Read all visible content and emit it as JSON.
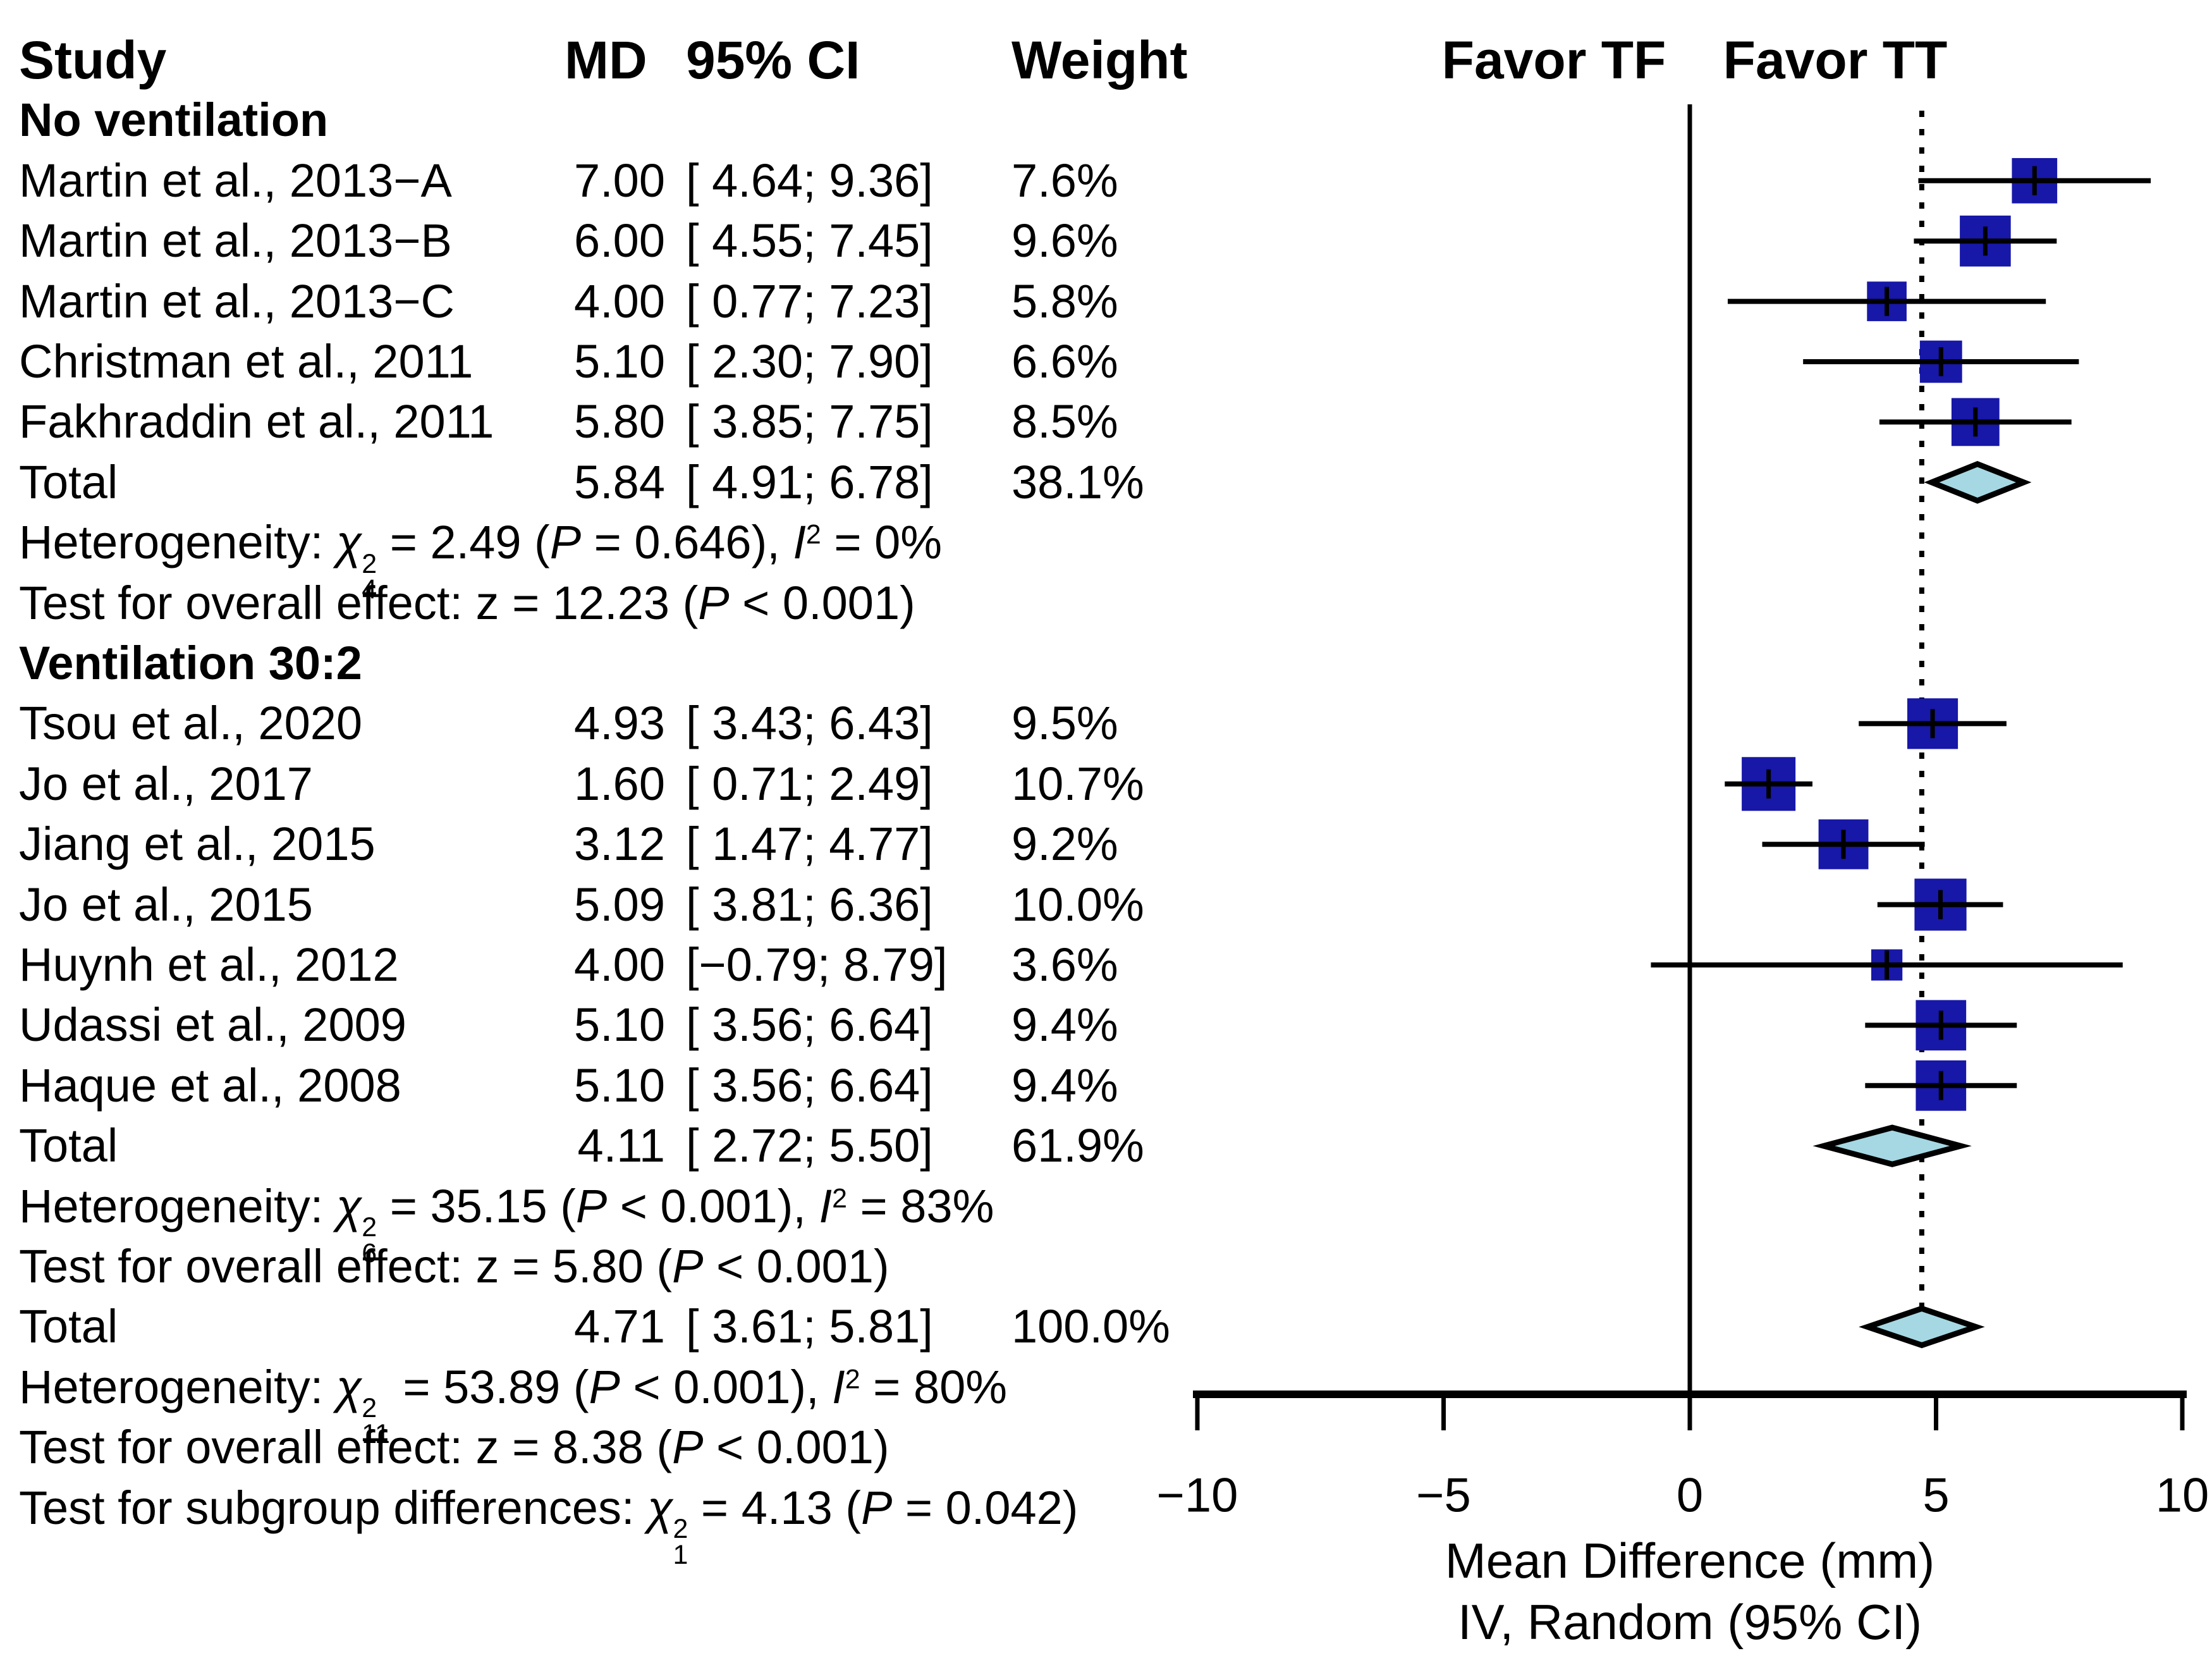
{
  "figure": {
    "columns": {
      "study": "Study",
      "md": "MD",
      "ci": "95% CI",
      "weight": "Weight"
    },
    "favor_left": "Favor TF",
    "favor_right": "Favor TT",
    "axis_label_line1": "Mean Difference (mm)",
    "axis_label_line2": "IV, Random (95% CI)",
    "colors": {
      "square": "#1717a8",
      "diamond_fill": "#a5d8e2",
      "line": "#000000",
      "background": "#ffffff"
    }
  },
  "chart_data": {
    "type": "forest",
    "x_axis": {
      "ticks": [
        -10,
        -5,
        0,
        5,
        10
      ],
      "tick_labels": [
        "−10",
        "−5",
        "0",
        "5",
        "10"
      ],
      "range": [
        -10,
        10
      ],
      "label_line1": "Mean Difference (mm)",
      "label_line2": "IV, Random (95% CI)"
    },
    "zero_line_x": 0,
    "pooled_line_x": 4.71,
    "rows": [
      {
        "kind": "group",
        "label": "No ventilation"
      },
      {
        "kind": "study",
        "label": "Martin et al., 2013−A",
        "md_text": "7.00",
        "ci_text": "[ 4.64; 9.36]",
        "weight_text": "7.6%",
        "md": 7.0,
        "lo": 4.64,
        "hi": 9.36,
        "weight": 7.6
      },
      {
        "kind": "study",
        "label": "Martin et al., 2013−B",
        "md_text": "6.00",
        "ci_text": "[ 4.55; 7.45]",
        "weight_text": "9.6%",
        "md": 6.0,
        "lo": 4.55,
        "hi": 7.45,
        "weight": 9.6
      },
      {
        "kind": "study",
        "label": "Martin et al., 2013−C",
        "md_text": "4.00",
        "ci_text": "[ 0.77; 7.23]",
        "weight_text": "5.8%",
        "md": 4.0,
        "lo": 0.77,
        "hi": 7.23,
        "weight": 5.8
      },
      {
        "kind": "study",
        "label": "Christman et al., 2011",
        "md_text": "5.10",
        "ci_text": "[ 2.30; 7.90]",
        "weight_text": "6.6%",
        "md": 5.1,
        "lo": 2.3,
        "hi": 7.9,
        "weight": 6.6
      },
      {
        "kind": "study",
        "label": "Fakhraddin et al., 2011",
        "md_text": "5.80",
        "ci_text": "[ 3.85; 7.75]",
        "weight_text": "8.5%",
        "md": 5.8,
        "lo": 3.85,
        "hi": 7.75,
        "weight": 8.5
      },
      {
        "kind": "total",
        "label": "Total",
        "md_text": "5.84",
        "ci_text": "[ 4.91; 6.78]",
        "weight_text": "38.1%",
        "md": 5.84,
        "lo": 4.91,
        "hi": 6.78
      },
      {
        "kind": "stat",
        "parts": [
          [
            "t",
            "Heterogeneity: "
          ],
          [
            "chi",
            "2",
            "4"
          ],
          [
            "t",
            " = 2.49 ("
          ],
          [
            "i",
            "P"
          ],
          [
            "t",
            " = 0.646), "
          ],
          [
            "i",
            "I"
          ],
          [
            "sup",
            "2"
          ],
          [
            "t",
            " = 0%"
          ]
        ]
      },
      {
        "kind": "stat",
        "parts": [
          [
            "t",
            "Test for overall effect: z = 12.23 ("
          ],
          [
            "i",
            "P"
          ],
          [
            "t",
            " < 0.001)"
          ]
        ]
      },
      {
        "kind": "group",
        "label": "Ventilation 30:2"
      },
      {
        "kind": "study",
        "label": "Tsou et al., 2020",
        "md_text": "4.93",
        "ci_text": "[ 3.43; 6.43]",
        "weight_text": "9.5%",
        "md": 4.93,
        "lo": 3.43,
        "hi": 6.43,
        "weight": 9.5
      },
      {
        "kind": "study",
        "label": "Jo et al., 2017",
        "md_text": "1.60",
        "ci_text": "[ 0.71; 2.49]",
        "weight_text": "10.7%",
        "md": 1.6,
        "lo": 0.71,
        "hi": 2.49,
        "weight": 10.7
      },
      {
        "kind": "study",
        "label": "Jiang et al., 2015",
        "md_text": "3.12",
        "ci_text": "[ 1.47; 4.77]",
        "weight_text": "9.2%",
        "md": 3.12,
        "lo": 1.47,
        "hi": 4.77,
        "weight": 9.2
      },
      {
        "kind": "study",
        "label": "Jo et al., 2015",
        "md_text": "5.09",
        "ci_text": "[ 3.81; 6.36]",
        "weight_text": "10.0%",
        "md": 5.09,
        "lo": 3.81,
        "hi": 6.36,
        "weight": 10.0
      },
      {
        "kind": "study",
        "label": "Huynh et al., 2012",
        "md_text": "4.00",
        "ci_text": "[−0.79; 8.79]",
        "weight_text": "3.6%",
        "md": 4.0,
        "lo": -0.79,
        "hi": 8.79,
        "weight": 3.6
      },
      {
        "kind": "study",
        "label": "Udassi et al., 2009",
        "md_text": "5.10",
        "ci_text": "[ 3.56; 6.64]",
        "weight_text": "9.4%",
        "md": 5.1,
        "lo": 3.56,
        "hi": 6.64,
        "weight": 9.4
      },
      {
        "kind": "study",
        "label": "Haque et al., 2008",
        "md_text": "5.10",
        "ci_text": "[ 3.56; 6.64]",
        "weight_text": "9.4%",
        "md": 5.1,
        "lo": 3.56,
        "hi": 6.64,
        "weight": 9.4
      },
      {
        "kind": "total",
        "label": "Total",
        "md_text": "4.11",
        "ci_text": "[ 2.72; 5.50]",
        "weight_text": "61.9%",
        "md": 4.11,
        "lo": 2.72,
        "hi": 5.5
      },
      {
        "kind": "stat",
        "parts": [
          [
            "t",
            "Heterogeneity: "
          ],
          [
            "chi",
            "2",
            "6"
          ],
          [
            "t",
            " = 35.15 ("
          ],
          [
            "i",
            "P"
          ],
          [
            "t",
            " < 0.001), "
          ],
          [
            "i",
            "I"
          ],
          [
            "sup",
            "2"
          ],
          [
            "t",
            " = 83%"
          ]
        ]
      },
      {
        "kind": "stat",
        "parts": [
          [
            "t",
            "Test for overall effect: z = 5.80 ("
          ],
          [
            "i",
            "P"
          ],
          [
            "t",
            " < 0.001)"
          ]
        ]
      },
      {
        "kind": "total",
        "label": "Total",
        "md_text": "4.71",
        "ci_text": "[ 3.61; 5.81]",
        "weight_text": "100.0%",
        "md": 4.71,
        "lo": 3.61,
        "hi": 5.81
      },
      {
        "kind": "stat",
        "parts": [
          [
            "t",
            "Heterogeneity: "
          ],
          [
            "chi",
            "2",
            "11"
          ],
          [
            "t",
            " = 53.89 ("
          ],
          [
            "i",
            "P"
          ],
          [
            "t",
            " < 0.001), "
          ],
          [
            "i",
            "I"
          ],
          [
            "sup",
            "2"
          ],
          [
            "t",
            " = 80%"
          ]
        ]
      },
      {
        "kind": "stat",
        "parts": [
          [
            "t",
            "Test for overall effect: z = 8.38 ("
          ],
          [
            "i",
            "P"
          ],
          [
            "t",
            " < 0.001)"
          ]
        ]
      },
      {
        "kind": "stat",
        "parts": [
          [
            "t",
            "Test for subgroup differences: "
          ],
          [
            "chi",
            "2",
            "1"
          ],
          [
            "t",
            " = 4.13 ("
          ],
          [
            "i",
            "P"
          ],
          [
            "t",
            " = 0.042)"
          ]
        ]
      }
    ]
  }
}
